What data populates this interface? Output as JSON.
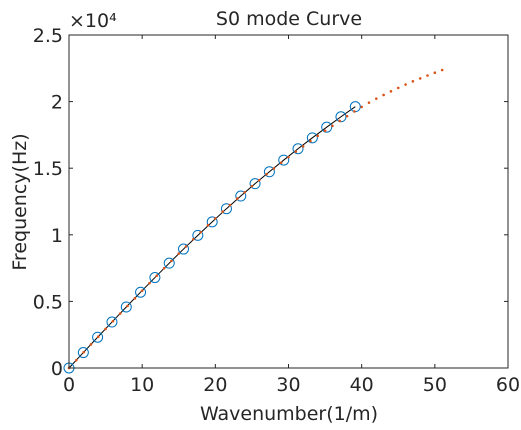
{
  "chart_data": {
    "type": "scatter",
    "title": "S0 mode Curve",
    "xlabel": "Wavenumber(1/m)",
    "ylabel": "Frequency(Hz)",
    "y_exponent_label": "×10⁴",
    "xlim": [
      0,
      60
    ],
    "ylim": [
      0,
      25000
    ],
    "x_ticks": [
      0,
      10,
      20,
      30,
      40,
      50,
      60
    ],
    "x_tick_labels": [
      "0",
      "10",
      "20",
      "30",
      "40",
      "50",
      "60"
    ],
    "y_ticks": [
      0,
      5000,
      10000,
      15000,
      20000,
      25000
    ],
    "y_tick_labels": [
      "0",
      "0.5",
      "1",
      "1.5",
      "2",
      "2.5"
    ],
    "grid": false,
    "box": true,
    "colors": {
      "circles": "#0072BD",
      "line": "#000000",
      "dots": "#D95319",
      "axes": "#262626"
    },
    "series": [
      {
        "style": "circle-markers",
        "x": [
          0,
          1.96,
          3.91,
          5.87,
          7.83,
          9.78,
          11.74,
          13.7,
          15.65,
          17.61,
          19.57,
          21.52,
          23.48,
          25.43,
          27.39,
          29.35,
          31.3,
          33.26,
          35.22,
          37.17,
          39.13
        ],
        "y": [
          0,
          1160,
          2310,
          3450,
          4580,
          5690,
          6790,
          7870,
          8930,
          9960,
          10970,
          11960,
          12910,
          13840,
          14730,
          15610,
          16460,
          17280,
          18080,
          18860,
          19620
        ]
      },
      {
        "style": "line",
        "x": [
          0,
          1.96,
          3.91,
          5.87,
          7.83,
          9.78,
          11.74,
          13.7,
          15.65,
          17.61,
          19.57,
          21.52,
          23.48,
          25.43,
          27.39,
          29.35,
          31.3,
          33.26,
          35.22,
          37.17,
          39.13
        ],
        "y": [
          0,
          1160,
          2310,
          3450,
          4580,
          5690,
          6790,
          7870,
          8930,
          9960,
          10970,
          11960,
          12910,
          13840,
          14730,
          15610,
          16460,
          17280,
          18080,
          18860,
          19620
        ]
      },
      {
        "style": "dot-markers",
        "x": [
          0,
          1,
          2,
          3,
          4,
          5,
          6,
          7,
          8,
          9,
          10,
          11,
          12,
          13,
          14,
          15,
          16,
          17,
          18,
          19,
          20,
          21,
          22,
          23,
          24,
          25,
          26,
          27,
          28,
          29,
          30,
          31,
          32,
          33,
          34,
          35,
          36,
          37,
          38,
          39,
          40,
          41,
          42,
          43,
          44,
          45,
          46,
          47,
          48,
          49,
          50,
          51
        ],
        "y": [
          0,
          590,
          1180,
          1770,
          2350,
          2930,
          3510,
          4090,
          4660,
          5230,
          5800,
          6370,
          6930,
          7490,
          8040,
          8590,
          9130,
          9670,
          10200,
          10720,
          11230,
          11740,
          12230,
          12720,
          13190,
          13650,
          14100,
          14550,
          14980,
          15410,
          15830,
          16240,
          16640,
          17040,
          17430,
          17810,
          18180,
          18550,
          18910,
          19260,
          19600,
          19920,
          20220,
          20500,
          20770,
          21030,
          21280,
          21520,
          21740,
          21960,
          22170,
          22370
        ]
      }
    ]
  }
}
